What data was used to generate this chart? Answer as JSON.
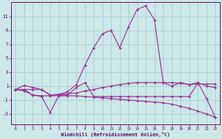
{
  "background_color": "#cce8e8",
  "grid_color": "#aacccc",
  "line_color": "#993399",
  "xlabel": "Windchill (Refroidissement éolien,°C)",
  "xlim": [
    -0.5,
    23.5
  ],
  "ylim": [
    -4.5,
    13.0
  ],
  "yticks": [
    -3,
    -1,
    1,
    3,
    5,
    7,
    9,
    11
  ],
  "xticks": [
    0,
    1,
    2,
    3,
    4,
    5,
    6,
    7,
    8,
    9,
    10,
    11,
    12,
    13,
    14,
    15,
    16,
    17,
    18,
    19,
    20,
    21,
    22,
    23
  ],
  "line1_x": [
    0,
    1,
    2,
    3,
    4,
    5,
    6,
    7,
    8,
    9,
    10,
    11,
    12,
    13,
    14,
    15,
    16,
    17,
    18,
    19,
    20,
    21,
    22,
    23
  ],
  "line1_y": [
    0.5,
    1.1,
    0.8,
    0.5,
    -0.3,
    -0.2,
    -0.1,
    0.0,
    0.3,
    0.5,
    0.8,
    1.0,
    1.2,
    1.4,
    1.5,
    1.5,
    1.5,
    1.5,
    1.5,
    1.4,
    1.2,
    1.5,
    1.0,
    0.8
  ],
  "line2_x": [
    0,
    1,
    2,
    3,
    4,
    5,
    6,
    7,
    8,
    9,
    10,
    11,
    12,
    13,
    14,
    15,
    16,
    17,
    18,
    19,
    20,
    21,
    22,
    23
  ],
  "line2_y": [
    0.5,
    0.5,
    -0.3,
    -0.5,
    -2.8,
    -0.3,
    -0.3,
    0.8,
    1.5,
    -0.5,
    -0.5,
    -0.5,
    -0.5,
    -0.5,
    -0.5,
    -0.5,
    -0.5,
    -0.5,
    -0.5,
    -0.5,
    -0.5,
    1.5,
    -0.8,
    -3.5
  ],
  "line3_x": [
    0,
    1,
    2,
    3,
    4,
    5,
    6,
    7,
    8,
    9,
    10,
    11,
    12,
    13,
    14,
    15,
    16,
    17,
    18,
    19,
    20,
    21,
    22,
    23
  ],
  "line3_y": [
    0.5,
    0.3,
    -0.3,
    -0.4,
    -0.4,
    -0.4,
    -0.4,
    -0.4,
    -0.5,
    -0.6,
    -0.7,
    -0.8,
    -0.9,
    -1.0,
    -1.1,
    -1.2,
    -1.3,
    -1.4,
    -1.6,
    -1.9,
    -2.2,
    -2.6,
    -3.0,
    -3.5
  ],
  "line4_x": [
    0,
    1,
    2,
    3,
    4,
    5,
    6,
    7,
    8,
    9,
    10,
    11,
    12,
    13,
    14,
    15,
    16,
    17,
    18,
    19,
    20,
    21,
    22,
    23
  ],
  "line4_y": [
    0.5,
    0.5,
    0.5,
    0.5,
    -0.3,
    -0.2,
    0.2,
    1.2,
    4.0,
    6.5,
    8.5,
    9.0,
    6.5,
    9.5,
    12.0,
    12.5,
    10.5,
    1.5,
    1.0,
    1.5,
    1.2,
    1.3,
    1.3,
    1.3
  ]
}
